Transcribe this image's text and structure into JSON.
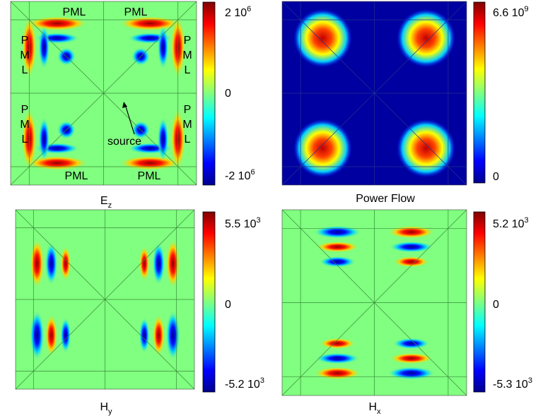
{
  "panels": [
    {
      "caption": {
        "text": "E",
        "sub": "z"
      },
      "colorbar": [
        {
          "text": "2 10",
          "sup": "6"
        },
        {
          "text": "0"
        },
        {
          "text": "-2 10",
          "sup": "6"
        }
      ]
    },
    {
      "caption": {
        "text": "Power Flow"
      },
      "colorbar": [
        {
          "text": "6.6 10",
          "sup": "9"
        },
        {
          "text": "0"
        }
      ]
    },
    {
      "caption": {
        "text": "H",
        "sub": "y"
      },
      "colorbar": [
        {
          "text": "5.5 10",
          "sup": "3"
        },
        {
          "text": "0"
        },
        {
          "text": "-5.2 10",
          "sup": "3"
        }
      ]
    },
    {
      "caption": {
        "text": "H",
        "sub": "x"
      },
      "colorbar": [
        {
          "text": "5.2 10",
          "sup": "3"
        },
        {
          "text": "0"
        },
        {
          "text": "-5.3 10",
          "sup": "3"
        }
      ]
    }
  ],
  "annotations": {
    "pml": [
      "PML",
      "PML",
      "PML",
      "PML"
    ],
    "side_pml": [
      [
        "P",
        "M",
        "L"
      ],
      [
        "P",
        "M",
        "L"
      ],
      [
        "P",
        "M",
        "L"
      ],
      [
        "P",
        "M",
        "L"
      ]
    ],
    "source": "source"
  }
}
